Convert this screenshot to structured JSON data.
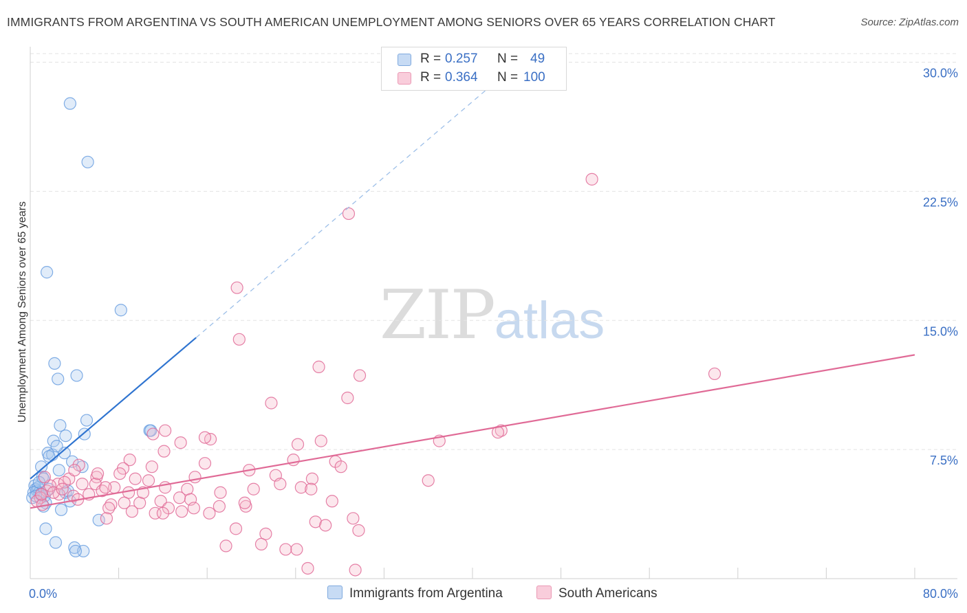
{
  "header": {
    "title": "IMMIGRANTS FROM ARGENTINA VS SOUTH AMERICAN UNEMPLOYMENT AMONG SENIORS OVER 65 YEARS CORRELATION CHART",
    "source": "Source: ZipAtlas.com"
  },
  "watermark": {
    "zip": "ZIP",
    "atlas": "atlas"
  },
  "legend": {
    "rows": [
      {
        "r_label": "R =",
        "r_value": "0.257",
        "n_label": "N =",
        "n_value": "49",
        "color": "#9dc0ea"
      },
      {
        "r_label": "R =",
        "r_value": "0.364",
        "n_label": "N =",
        "n_value": "100",
        "color": "#f4aec4"
      }
    ]
  },
  "bottom_legend": {
    "series1": "Immigrants from Argentina",
    "series2": "South Americans"
  },
  "chart_data": {
    "type": "scatter",
    "title": "IMMIGRANTS FROM ARGENTINA VS SOUTH AMERICAN UNEMPLOYMENT AMONG SENIORS OVER 65 YEARS CORRELATION CHART",
    "xlabel": "",
    "ylabel": "Unemployment Among Seniors over 65 years",
    "xlim": [
      0,
      80
    ],
    "ylim": [
      0,
      30.5
    ],
    "x_tick_labels": [
      "0.0%",
      "80.0%"
    ],
    "y_ticks": [
      7.5,
      15.0,
      22.5,
      30.0
    ],
    "y_tick_labels": [
      "7.5%",
      "15.0%",
      "22.5%",
      "30.0%"
    ],
    "grid": true,
    "series": [
      {
        "name": "Immigrants from Argentina",
        "color": "#6a9fe0",
        "fill": "#a9c8ef",
        "trend": {
          "x0": 0.0,
          "y0": 5.8,
          "x1": 15.0,
          "y1": 14.0,
          "x_dash_end": 41.8,
          "y_dash_end": 28.7
        },
        "points": [
          [
            3.6,
            27.6
          ],
          [
            5.2,
            24.2
          ],
          [
            1.5,
            17.8
          ],
          [
            8.2,
            15.6
          ],
          [
            2.2,
            12.5
          ],
          [
            2.5,
            11.6
          ],
          [
            4.2,
            11.8
          ],
          [
            5.1,
            9.2
          ],
          [
            2.7,
            8.9
          ],
          [
            4.9,
            8.4
          ],
          [
            3.2,
            8.3
          ],
          [
            2.1,
            8.0
          ],
          [
            10.8,
            8.6
          ],
          [
            10.9,
            8.6
          ],
          [
            1.6,
            7.3
          ],
          [
            2.0,
            7.2
          ],
          [
            3.1,
            7.3
          ],
          [
            1.7,
            7.1
          ],
          [
            2.4,
            7.7
          ],
          [
            3.8,
            6.8
          ],
          [
            4.7,
            6.5
          ],
          [
            1.0,
            6.5
          ],
          [
            2.6,
            6.3
          ],
          [
            1.1,
            5.9
          ],
          [
            1.2,
            5.8
          ],
          [
            0.4,
            5.4
          ],
          [
            0.5,
            5.2
          ],
          [
            0.6,
            5.1
          ],
          [
            0.7,
            5.3
          ],
          [
            0.8,
            5.0
          ],
          [
            0.9,
            4.9
          ],
          [
            1.3,
            4.8
          ],
          [
            0.3,
            5.0
          ],
          [
            0.2,
            4.7
          ],
          [
            1.4,
            4.4
          ],
          [
            1.2,
            4.2
          ],
          [
            3.2,
            5.0
          ],
          [
            3.4,
            5.1
          ],
          [
            3.6,
            4.5
          ],
          [
            2.8,
            4.0
          ],
          [
            6.2,
            3.4
          ],
          [
            1.4,
            2.9
          ],
          [
            2.3,
            2.1
          ],
          [
            4.0,
            1.8
          ],
          [
            4.8,
            1.6
          ],
          [
            4.1,
            1.6
          ],
          [
            0.5,
            4.8
          ],
          [
            0.8,
            5.6
          ],
          [
            1.7,
            5.2
          ]
        ]
      },
      {
        "name": "South Americans",
        "color": "#e06a96",
        "fill": "#f6b9cc",
        "trend": {
          "x0": 0.0,
          "y0": 4.1,
          "x1": 80.0,
          "y1": 13.0
        },
        "points": [
          [
            50.8,
            23.2
          ],
          [
            28.8,
            21.2
          ],
          [
            18.7,
            16.9
          ],
          [
            18.9,
            13.9
          ],
          [
            26.1,
            12.3
          ],
          [
            29.8,
            11.8
          ],
          [
            61.9,
            11.9
          ],
          [
            21.8,
            10.2
          ],
          [
            28.7,
            10.5
          ],
          [
            42.6,
            8.6
          ],
          [
            42.3,
            8.5
          ],
          [
            37.0,
            8.0
          ],
          [
            16.3,
            8.1
          ],
          [
            26.3,
            8.0
          ],
          [
            24.2,
            7.8
          ],
          [
            15.8,
            6.7
          ],
          [
            23.8,
            6.9
          ],
          [
            12.2,
            8.6
          ],
          [
            13.6,
            7.9
          ],
          [
            11.1,
            8.4
          ],
          [
            15.8,
            8.2
          ],
          [
            12.1,
            7.4
          ],
          [
            27.6,
            6.8
          ],
          [
            28.1,
            6.5
          ],
          [
            9.0,
            6.9
          ],
          [
            8.4,
            6.4
          ],
          [
            11.0,
            6.5
          ],
          [
            14.9,
            5.9
          ],
          [
            19.8,
            6.3
          ],
          [
            22.2,
            6.0
          ],
          [
            25.5,
            5.8
          ],
          [
            36.0,
            5.7
          ],
          [
            6.0,
            5.9
          ],
          [
            5.9,
            5.5
          ],
          [
            9.5,
            5.8
          ],
          [
            10.7,
            5.7
          ],
          [
            4.7,
            5.5
          ],
          [
            3.5,
            5.8
          ],
          [
            7.6,
            5.3
          ],
          [
            12.2,
            5.3
          ],
          [
            14.2,
            5.2
          ],
          [
            17.2,
            5.0
          ],
          [
            20.2,
            5.2
          ],
          [
            22.6,
            5.5
          ],
          [
            24.5,
            5.3
          ],
          [
            25.4,
            5.2
          ],
          [
            27.3,
            4.5
          ],
          [
            8.9,
            5.0
          ],
          [
            11.8,
            4.5
          ],
          [
            13.5,
            4.7
          ],
          [
            14.5,
            4.6
          ],
          [
            19.5,
            4.2
          ],
          [
            9.9,
            4.4
          ],
          [
            7.3,
            4.3
          ],
          [
            5.3,
            4.9
          ],
          [
            3.9,
            4.8
          ],
          [
            2.5,
            5.5
          ],
          [
            2.6,
            4.9
          ],
          [
            1.5,
            5.1
          ],
          [
            0.9,
            4.7
          ],
          [
            0.6,
            4.5
          ],
          [
            1.1,
            4.3
          ],
          [
            1.8,
            5.4
          ],
          [
            3.1,
            5.6
          ],
          [
            4.4,
            6.6
          ],
          [
            6.5,
            5.1
          ],
          [
            6.1,
            6.1
          ],
          [
            7.1,
            4.1
          ],
          [
            8.5,
            4.4
          ],
          [
            9.2,
            3.9
          ],
          [
            11.3,
            3.8
          ],
          [
            12.5,
            4.1
          ],
          [
            13.7,
            3.9
          ],
          [
            14.8,
            4.1
          ],
          [
            16.2,
            3.8
          ],
          [
            17.1,
            4.2
          ],
          [
            19.4,
            4.4
          ],
          [
            6.9,
            3.5
          ],
          [
            12.0,
            3.8
          ],
          [
            18.6,
            2.9
          ],
          [
            21.3,
            2.6
          ],
          [
            20.9,
            2.0
          ],
          [
            25.8,
            3.3
          ],
          [
            26.7,
            3.1
          ],
          [
            29.2,
            3.5
          ],
          [
            29.7,
            2.8
          ],
          [
            17.7,
            1.9
          ],
          [
            23.1,
            1.7
          ],
          [
            24.1,
            1.7
          ],
          [
            25.1,
            0.6
          ],
          [
            29.4,
            0.5
          ],
          [
            4.3,
            4.6
          ],
          [
            2.1,
            5.0
          ],
          [
            1.3,
            5.9
          ],
          [
            1.0,
            4.9
          ],
          [
            2.9,
            5.2
          ],
          [
            4.0,
            6.3
          ],
          [
            6.8,
            5.3
          ],
          [
            8.1,
            6.1
          ],
          [
            10.2,
            5.0
          ]
        ]
      }
    ]
  }
}
